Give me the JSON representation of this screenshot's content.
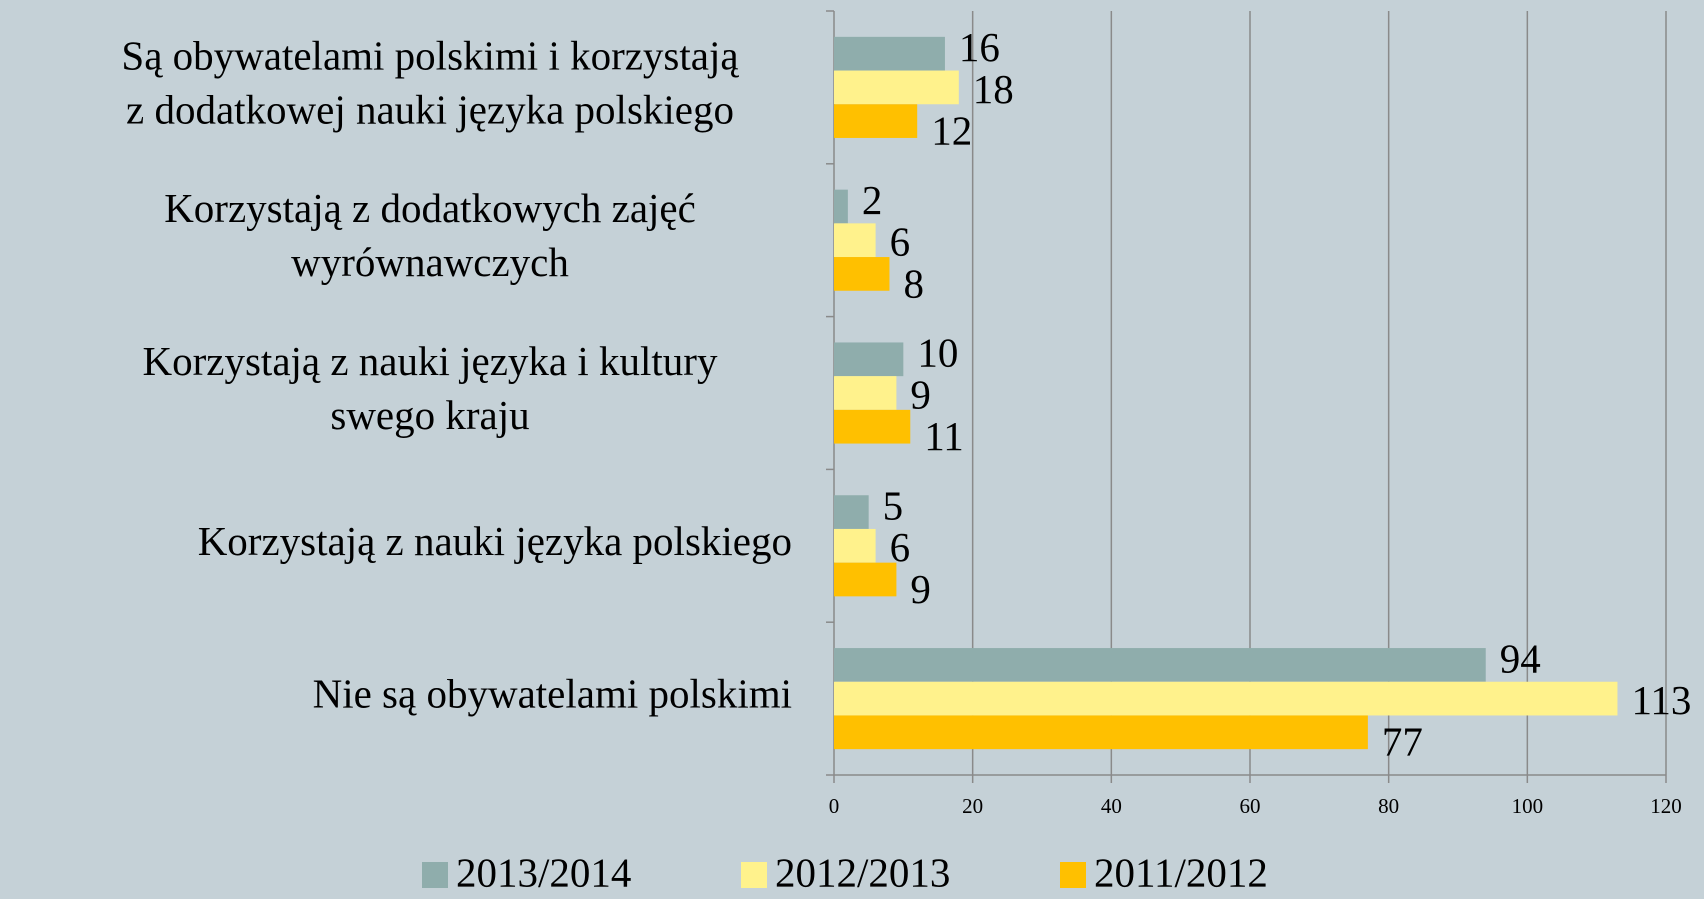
{
  "chart_data": {
    "type": "bar",
    "orientation": "horizontal",
    "categories": [
      "Są obywatelami polskimi i korzystają\nz dodatkowej nauki języka polskiego",
      "Korzystają z dodatkowych zajęć\nwyrównawczych",
      "Korzystają z nauki języka i kultury\nswego kraju",
      "Korzystają z nauki języka polskiego",
      "Nie są obywatelami polskimi"
    ],
    "series": [
      {
        "name": "2013/2014",
        "color": "#8fadac",
        "values": [
          16,
          2,
          10,
          5,
          94
        ]
      },
      {
        "name": "2012/2013",
        "color": "#fff28c",
        "values": [
          18,
          6,
          9,
          6,
          113
        ]
      },
      {
        "name": "2011/2012",
        "color": "#ffc000",
        "values": [
          12,
          8,
          11,
          9,
          77
        ]
      }
    ],
    "xlim": [
      0,
      120
    ],
    "xticks": [
      0,
      20,
      40,
      60,
      80,
      100,
      120
    ],
    "grid": true,
    "legend": "bottom"
  }
}
